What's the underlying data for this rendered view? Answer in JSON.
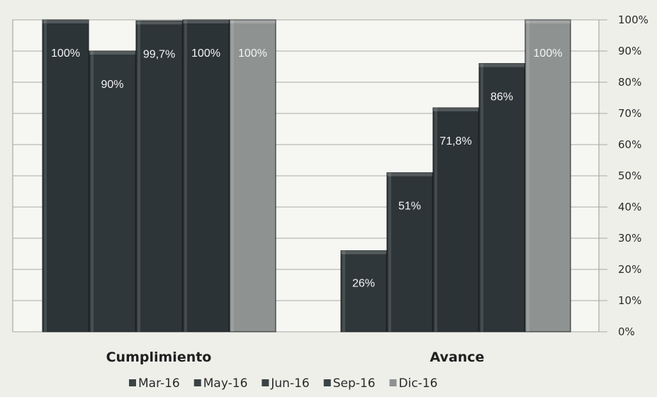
{
  "chart_data": {
    "type": "bar",
    "categories": [
      "Cumplimiento",
      "Avance"
    ],
    "series": [
      {
        "name": "Mar-16",
        "values": [
          100,
          null
        ],
        "labels": [
          "100%",
          ""
        ],
        "color": "#2c3437"
      },
      {
        "name": "May-16",
        "values": [
          90,
          26
        ],
        "labels": [
          "90%",
          "26%"
        ],
        "color": "#2f373a"
      },
      {
        "name": "Jun-16",
        "values": [
          99.7,
          51
        ],
        "labels": [
          "99,7%",
          "51%"
        ],
        "color": "#2e3538"
      },
      {
        "name": "Sep-16",
        "values": [
          100,
          71.8
        ],
        "labels": [
          "100%",
          "71,8%"
        ],
        "color": "#2b3336"
      },
      {
        "name": "Dic-16",
        "values": [
          100,
          86
        ],
        "labels": [
          "100%",
          "86%"
        ],
        "color": "#2d3538"
      },
      {
        "name": "",
        "values": [
          null,
          100
        ],
        "labels": [
          "",
          "100%"
        ],
        "color": "#8e9291"
      }
    ],
    "cumplimiento_last_color": "#8e9291",
    "y_ticks": [
      "0%",
      "10%",
      "20%",
      "30%",
      "40%",
      "50%",
      "60%",
      "70%",
      "80%",
      "90%",
      "100%"
    ],
    "ylim": [
      0,
      100
    ],
    "grid": true,
    "legend_position": "bottom",
    "legend": [
      {
        "label": "Mar-16",
        "color": "#3b4346"
      },
      {
        "label": "May-16",
        "color": "#3b4346"
      },
      {
        "label": "Jun-16",
        "color": "#3b4346"
      },
      {
        "label": "Sep-16",
        "color": "#3b4346"
      },
      {
        "label": "Dic-16",
        "color": "#8e9291"
      }
    ]
  }
}
